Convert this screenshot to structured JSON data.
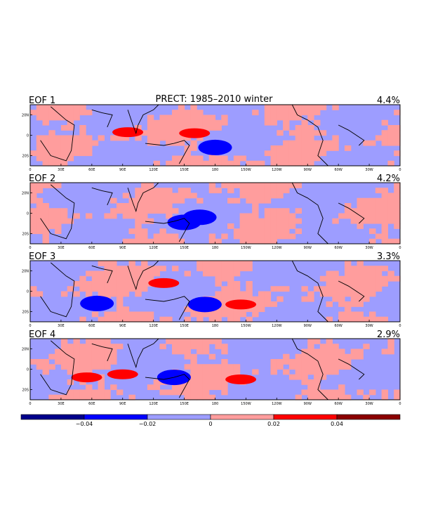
{
  "colors": {
    "neg3": "#00008b",
    "neg2": "#0000ff",
    "neg1": "#9d9dff",
    "pos1": "#ff9d9d",
    "pos2": "#ff0000",
    "pos3": "#8b0000"
  },
  "chart_data": {
    "type": "heatmap",
    "title": "PRECT: 1985–2010 winter",
    "lat_ticks": [
      "20N",
      "0",
      "20S"
    ],
    "lon_ticks": [
      "0",
      "30E",
      "60E",
      "90E",
      "120E",
      "150E",
      "180",
      "150W",
      "120W",
      "90W",
      "60W",
      "30W",
      "0"
    ],
    "panels": [
      {
        "label": "EOF 1",
        "variance": "4.4%",
        "positive_centers": [
          {
            "lon": 160,
            "lat": 2
          },
          {
            "lon": 95,
            "lat": 3
          }
        ],
        "negative_centers": [
          {
            "lon": 180,
            "lat": -12
          }
        ]
      },
      {
        "label": "EOF 2",
        "variance": "4.2%",
        "positive_centers": [],
        "negative_centers": [
          {
            "lon": 165,
            "lat": -4
          },
          {
            "lon": 150,
            "lat": -9
          }
        ]
      },
      {
        "label": "EOF 3",
        "variance": "3.3%",
        "positive_centers": [
          {
            "lon": 130,
            "lat": 8
          },
          {
            "lon": 205,
            "lat": -13
          }
        ],
        "negative_centers": [
          {
            "lon": 65,
            "lat": -12
          },
          {
            "lon": 170,
            "lat": -13
          }
        ]
      },
      {
        "label": "EOF 4",
        "variance": "2.9%",
        "positive_centers": [
          {
            "lon": 55,
            "lat": -8
          },
          {
            "lon": 90,
            "lat": -5
          },
          {
            "lon": 205,
            "lat": -10
          }
        ],
        "negative_centers": [
          {
            "lon": 140,
            "lat": -8
          }
        ]
      }
    ],
    "colorbar": {
      "bounds": [
        -0.04,
        -0.02,
        0,
        0.02,
        0.04
      ],
      "tick_labels": [
        "−0.04",
        "−0.02",
        "0",
        "0.02",
        "0.04"
      ]
    }
  }
}
